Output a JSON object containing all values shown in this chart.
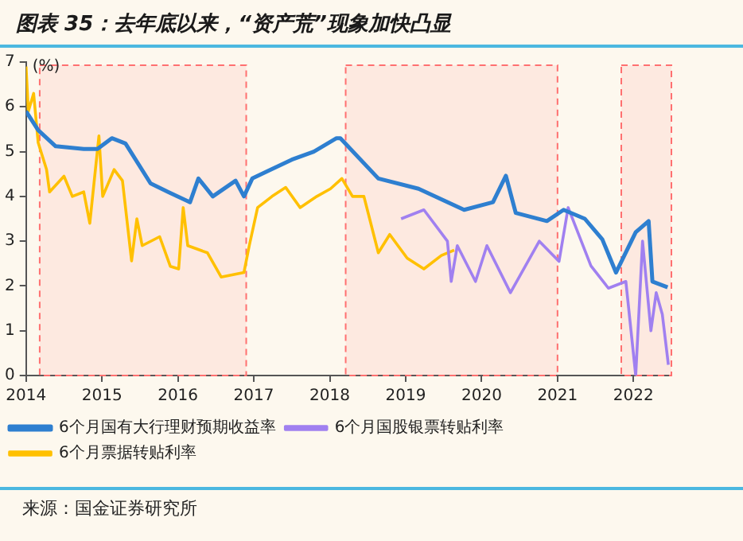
{
  "chart_data": {
    "type": "line",
    "title": "图表 35：去年底以来，“资产荒”现象加快凸显",
    "ylabel": "(%)",
    "annotations": [
      "来源：国金证券研究所"
    ],
    "xlim": [
      2014,
      2022.5
    ],
    "xticks": [
      2014,
      2015,
      2016,
      2017,
      2018,
      2019,
      2020,
      2021,
      2022
    ],
    "ylim": [
      0,
      7
    ],
    "yticks": [
      0,
      1,
      2,
      3,
      4,
      5,
      6,
      7
    ],
    "grid": false,
    "legend": "bottom",
    "marker": "none",
    "line_style": "solid",
    "bands": [
      {
        "axis": "x",
        "from": 2014.18,
        "to": 2016.9,
        "color": "#ff7070"
      },
      {
        "axis": "x",
        "from": 2018.21,
        "to": 2021.0,
        "color": "#ff7070"
      },
      {
        "axis": "x",
        "from": 2021.84,
        "to": 2022.5,
        "color": "#ff7070"
      }
    ],
    "series": [
      {
        "name": "6个月国有大行理财预期收益率",
        "color": "#2e7fd0",
        "x": [
          2014.0,
          2014.16,
          2014.39,
          2014.76,
          2014.94,
          2015.13,
          2015.31,
          2015.64,
          2015.87,
          2016.16,
          2016.27,
          2016.46,
          2016.76,
          2016.87,
          2016.98,
          2017.2,
          2017.5,
          2017.79,
          2018.09,
          2018.14,
          2018.64,
          2019.17,
          2019.77,
          2020.15,
          2020.32,
          2020.45,
          2020.86,
          2021.08,
          2021.36,
          2021.59,
          2021.77,
          2022.03,
          2022.2,
          2022.25,
          2022.45
        ],
        "values": [
          5.9,
          5.48,
          5.12,
          5.06,
          5.06,
          5.3,
          5.18,
          4.29,
          4.1,
          3.87,
          4.4,
          4.0,
          4.35,
          4.0,
          4.4,
          4.58,
          4.82,
          5.0,
          5.3,
          5.3,
          4.4,
          4.17,
          3.7,
          3.87,
          4.46,
          3.63,
          3.45,
          3.7,
          3.5,
          3.04,
          2.3,
          3.2,
          3.45,
          2.1,
          1.97
        ]
      },
      {
        "name": "6个月国股银票转贴利率",
        "color": "#a080f0",
        "x": [
          2018.94,
          2019.24,
          2019.55,
          2019.6,
          2019.68,
          2019.92,
          2020.07,
          2020.38,
          2020.76,
          2021.02,
          2021.14,
          2021.44,
          2021.67,
          2021.9,
          2022.03,
          2022.12,
          2022.23,
          2022.3,
          2022.38,
          2022.46
        ],
        "values": [
          3.5,
          3.7,
          3.0,
          2.1,
          2.9,
          2.1,
          2.9,
          1.85,
          3.0,
          2.55,
          3.75,
          2.45,
          1.95,
          2.1,
          0,
          3.0,
          1.0,
          1.85,
          1.37,
          0.24
        ]
      },
      {
        "name": "6个月票据转贴利率",
        "color": "#ffc000",
        "x": [
          2014.0,
          2014.03,
          2014.1,
          2014.16,
          2014.27,
          2014.31,
          2014.5,
          2014.61,
          2014.76,
          2014.84,
          2014.96,
          2015.01,
          2015.16,
          2015.27,
          2015.39,
          2015.46,
          2015.53,
          2015.76,
          2015.9,
          2016.01,
          2016.07,
          2016.13,
          2016.39,
          2016.57,
          2016.87,
          2016.94,
          2017.05,
          2017.24,
          2017.42,
          2017.61,
          2017.83,
          2018.01,
          2018.16,
          2018.3,
          2018.45,
          2018.64,
          2018.79,
          2019.02,
          2019.24,
          2019.47,
          2019.64
        ],
        "values": [
          6.9,
          5.9,
          6.3,
          5.2,
          4.6,
          4.1,
          4.45,
          4.0,
          4.1,
          3.4,
          5.35,
          4.0,
          4.6,
          4.35,
          2.56,
          3.5,
          2.9,
          3.1,
          2.44,
          2.38,
          3.75,
          2.9,
          2.74,
          2.2,
          2.3,
          2.9,
          3.75,
          4.0,
          4.2,
          3.75,
          4.0,
          4.17,
          4.4,
          4.0,
          4.0,
          2.74,
          3.15,
          2.62,
          2.38,
          2.68,
          2.8
        ]
      }
    ]
  }
}
